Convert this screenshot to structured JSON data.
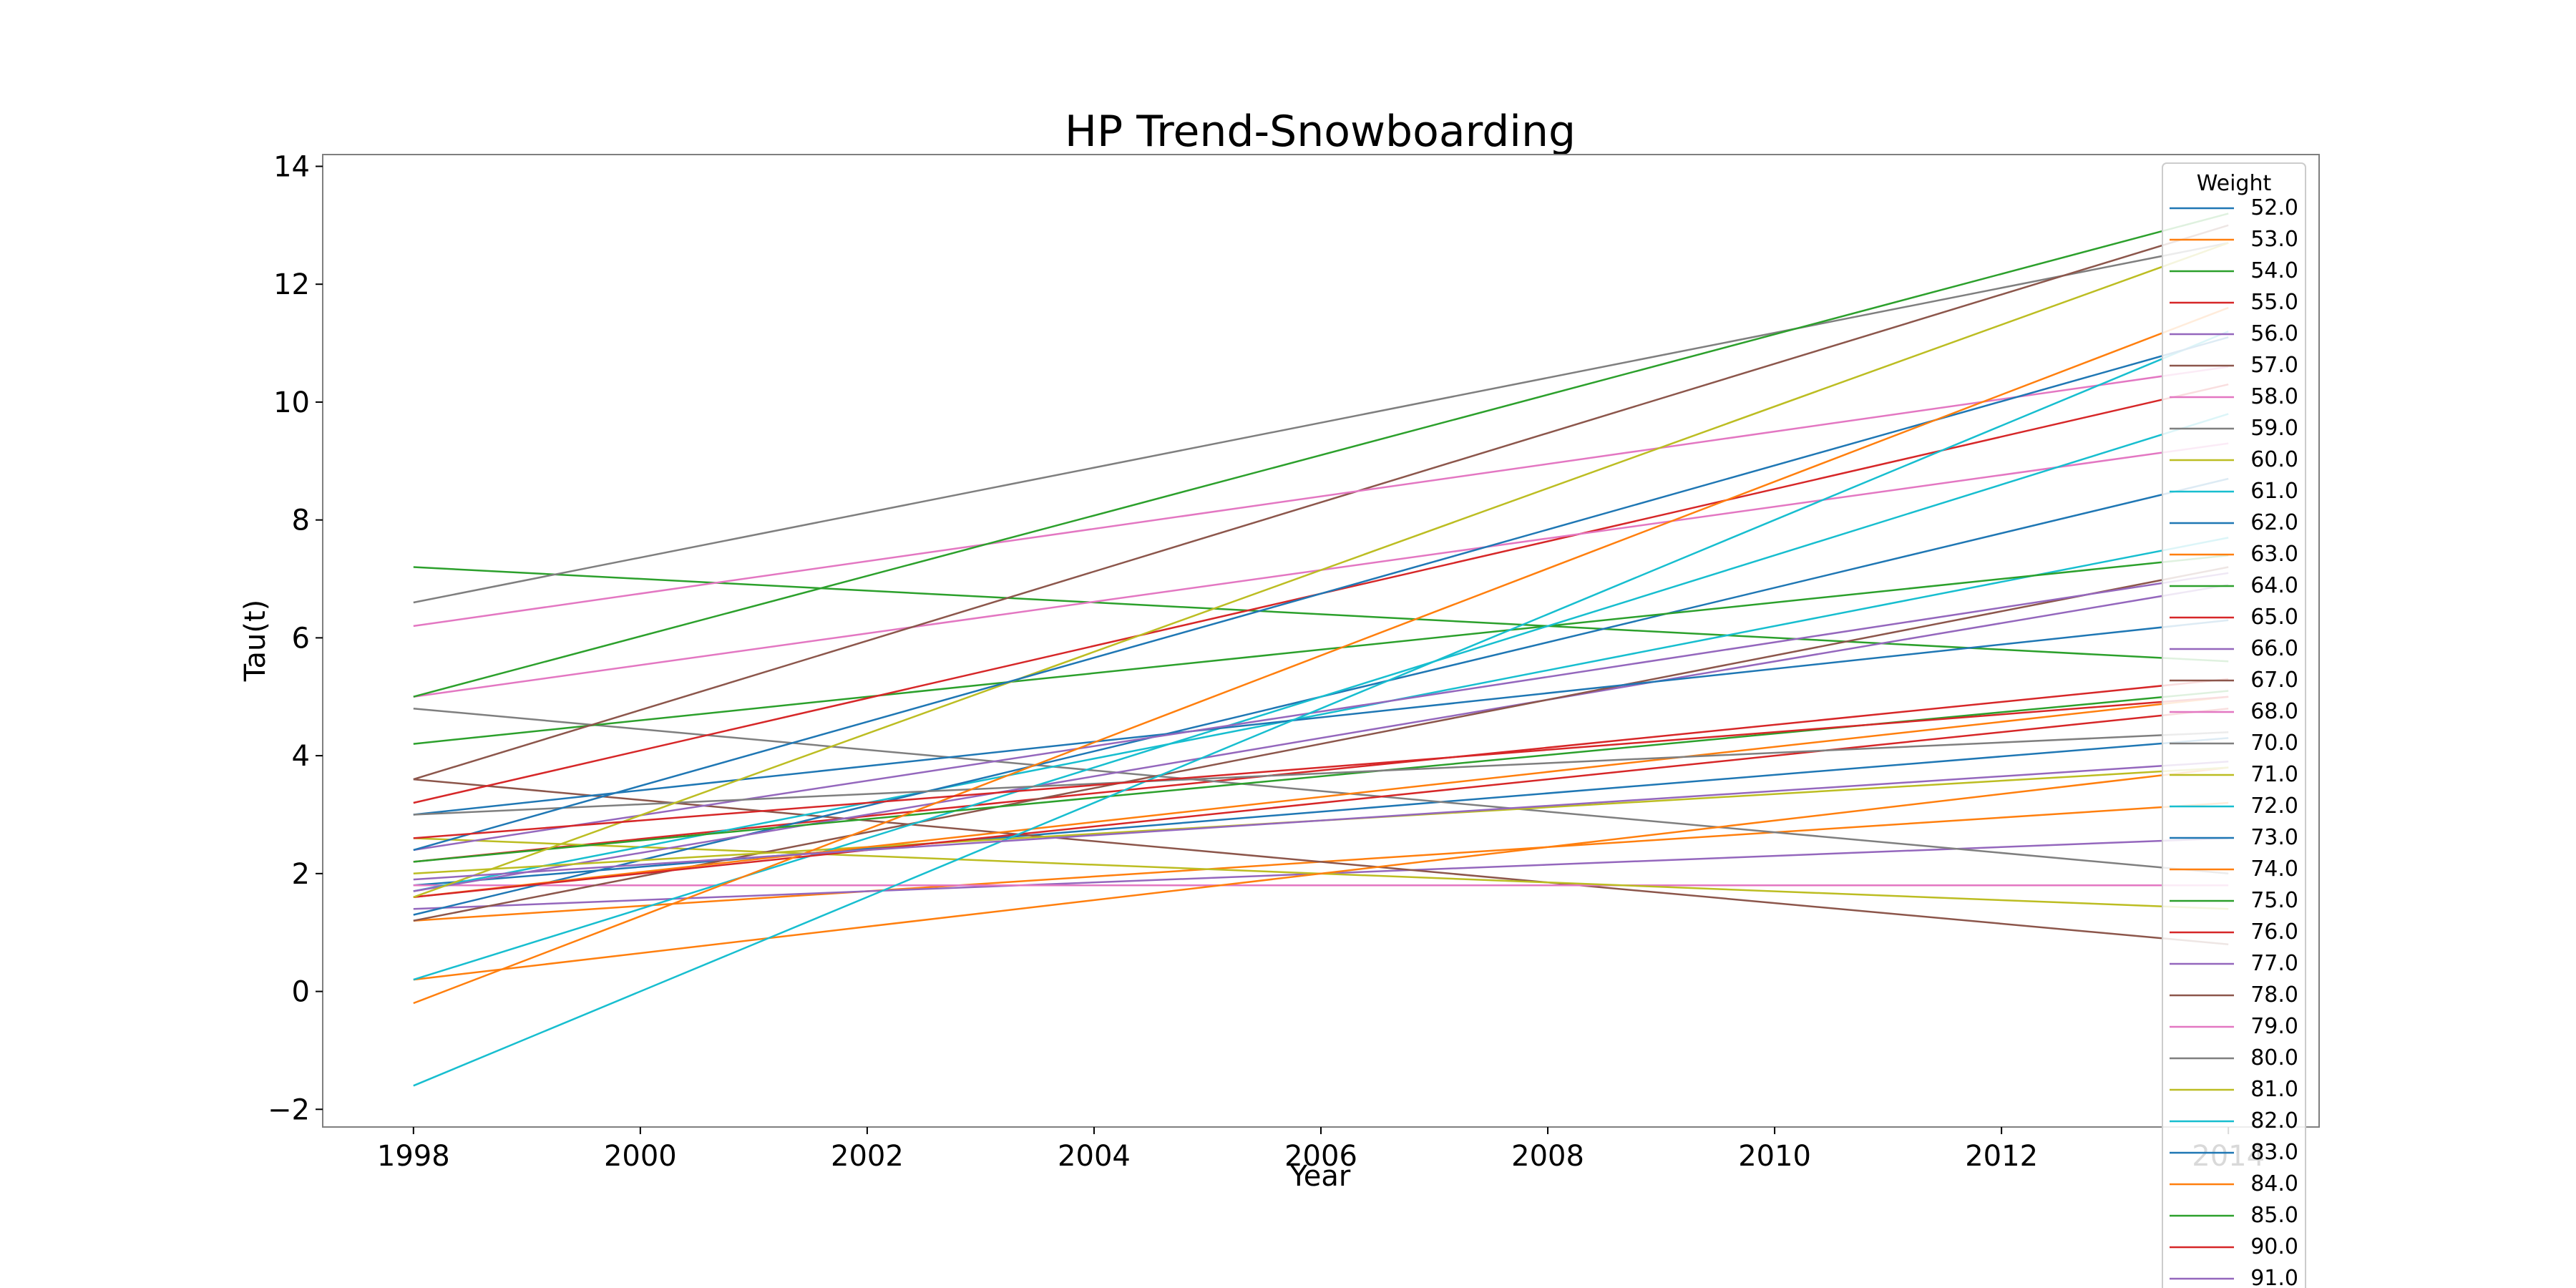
{
  "chart_data": {
    "type": "line",
    "title": "HP Trend-Snowboarding",
    "xlabel": "Year",
    "ylabel": "Tau(t)",
    "xlim": [
      1997.2,
      2014.8
    ],
    "ylim": [
      -2.3,
      14.2
    ],
    "xticks": [
      1998,
      2000,
      2002,
      2004,
      2006,
      2008,
      2010,
      2012,
      2014
    ],
    "xtick_labels": [
      "1998",
      "2000",
      "2002",
      "2004",
      "2006",
      "2008",
      "2010",
      "2012",
      "2014"
    ],
    "yticks": [
      -2,
      0,
      2,
      4,
      6,
      8,
      10,
      12,
      14
    ],
    "ytick_labels": [
      "−2",
      "0",
      "2",
      "4",
      "6",
      "8",
      "10",
      "12",
      "14"
    ],
    "grid": false,
    "legend": {
      "title": "Weight",
      "placement": "top-right (outside axes, overflowing bottom)"
    },
    "x": [
      1998,
      2014
    ],
    "series": [
      {
        "name": "52.0",
        "color": "#1f77b4",
        "values": [
          1.8,
          4.3
        ]
      },
      {
        "name": "53.0",
        "color": "#ff7f0e",
        "values": [
          1.2,
          3.2
        ]
      },
      {
        "name": "54.0",
        "color": "#2ca02c",
        "values": [
          7.2,
          5.6
        ]
      },
      {
        "name": "55.0",
        "color": "#d62728",
        "values": [
          2.2,
          5.3
        ]
      },
      {
        "name": "56.0",
        "color": "#9467bd",
        "values": [
          1.4,
          2.6
        ]
      },
      {
        "name": "57.0",
        "color": "#8c564b",
        "values": [
          3.6,
          0.8
        ]
      },
      {
        "name": "58.0",
        "color": "#e377c2",
        "values": [
          1.8,
          1.8
        ]
      },
      {
        "name": "59.0",
        "color": "#7f7f7f",
        "values": [
          4.8,
          2.0
        ]
      },
      {
        "name": "60.0",
        "color": "#bcbd22",
        "values": [
          2.6,
          1.4
        ]
      },
      {
        "name": "61.0",
        "color": "#17becf",
        "values": [
          1.7,
          7.7
        ]
      },
      {
        "name": "62.0",
        "color": "#1f77b4",
        "values": [
          1.3,
          8.7
        ]
      },
      {
        "name": "63.0",
        "color": "#ff7f0e",
        "values": [
          0.2,
          3.8
        ]
      },
      {
        "name": "64.0",
        "color": "#2ca02c",
        "values": [
          4.2,
          7.4
        ]
      },
      {
        "name": "65.0",
        "color": "#d62728",
        "values": [
          3.2,
          10.3
        ]
      },
      {
        "name": "66.0",
        "color": "#9467bd",
        "values": [
          1.7,
          6.9
        ]
      },
      {
        "name": "67.0",
        "color": "#8c564b",
        "values": [
          1.2,
          7.2
        ]
      },
      {
        "name": "68.0",
        "color": "#e377c2",
        "values": [
          5.0,
          9.3
        ]
      },
      {
        "name": "70.0",
        "color": "#7f7f7f",
        "values": [
          6.6,
          12.7
        ]
      },
      {
        "name": "71.0",
        "color": "#bcbd22",
        "values": [
          2.0,
          3.8
        ]
      },
      {
        "name": "72.0",
        "color": "#17becf",
        "values": [
          0.2,
          9.8
        ]
      },
      {
        "name": "73.0",
        "color": "#1f77b4",
        "values": [
          3.0,
          6.3
        ]
      },
      {
        "name": "74.0",
        "color": "#ff7f0e",
        "values": [
          1.6,
          5.0
        ]
      },
      {
        "name": "75.0",
        "color": "#2ca02c",
        "values": [
          2.2,
          5.1
        ]
      },
      {
        "name": "76.0",
        "color": "#d62728",
        "values": [
          1.6,
          4.8
        ]
      },
      {
        "name": "77.0",
        "color": "#9467bd",
        "values": [
          2.4,
          7.1
        ]
      },
      {
        "name": "78.0",
        "color": "#8c564b",
        "values": [
          3.6,
          13.0
        ]
      },
      {
        "name": "79.0",
        "color": "#e377c2",
        "values": [
          6.2,
          10.6
        ]
      },
      {
        "name": "80.0",
        "color": "#7f7f7f",
        "values": [
          3.0,
          4.4
        ]
      },
      {
        "name": "81.0",
        "color": "#bcbd22",
        "values": [
          1.6,
          12.7
        ]
      },
      {
        "name": "82.0",
        "color": "#17becf",
        "values": [
          -1.6,
          11.2
        ]
      },
      {
        "name": "83.0",
        "color": "#1f77b4",
        "values": [
          2.4,
          11.1
        ]
      },
      {
        "name": "84.0",
        "color": "#ff7f0e",
        "values": [
          -0.2,
          11.6
        ]
      },
      {
        "name": "85.0",
        "color": "#2ca02c",
        "values": [
          5.0,
          13.2
        ]
      },
      {
        "name": "90.0",
        "color": "#d62728",
        "values": [
          2.6,
          5.0
        ]
      },
      {
        "name": "91.0",
        "color": "#9467bd",
        "values": [
          1.9,
          3.9
        ]
      }
    ]
  }
}
